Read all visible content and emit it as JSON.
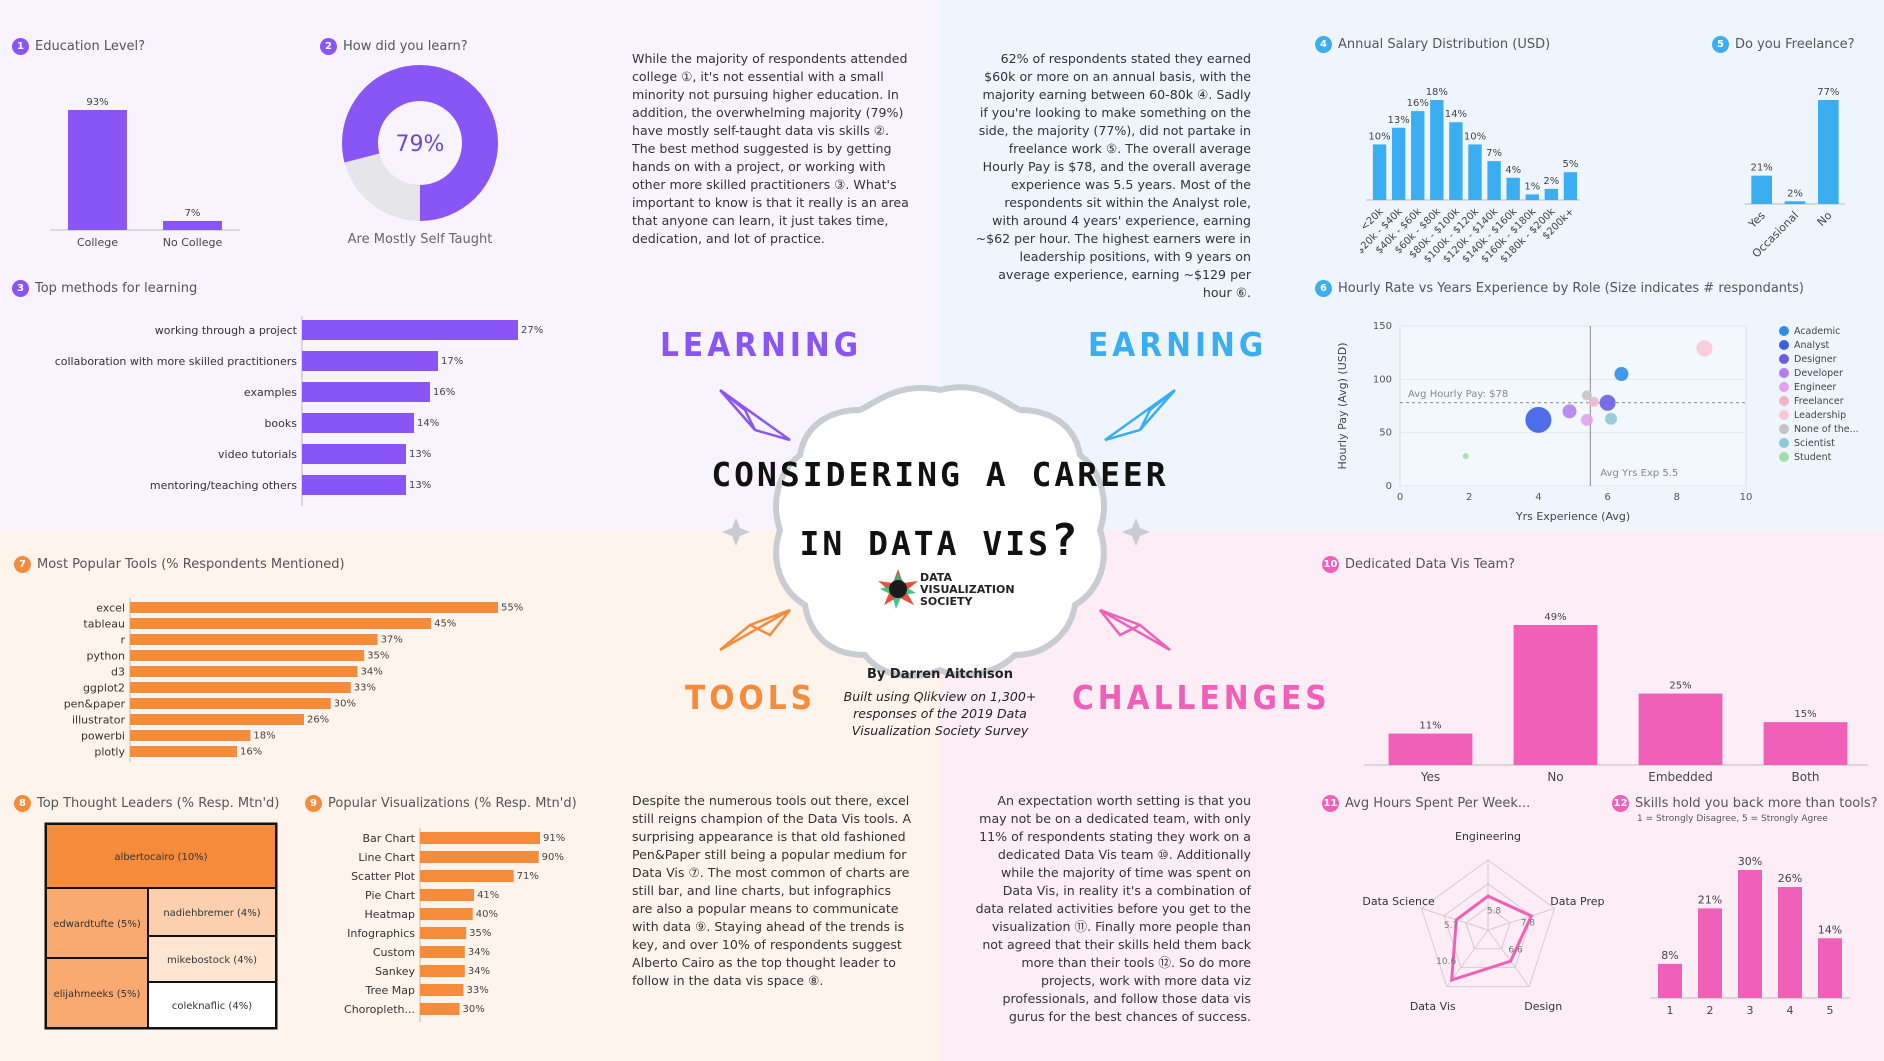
{
  "colors": {
    "purple": "#8a55f5",
    "blue": "#3aaef0",
    "orange": "#f58c3c",
    "pink": "#f05fb8"
  },
  "sections": {
    "learning": "LEARNING",
    "earning": "EARNING",
    "tools": "TOOLS",
    "challenges": "CHALLENGES"
  },
  "center": {
    "title_line1": "CONSIDERING A CAREER",
    "title_line2": "IN DATA VIS",
    "logo_line1": "DATA",
    "logo_line2": "VISUALIZATION",
    "logo_line3": "SOCIETY",
    "byline": "By Darren Aitchison",
    "built1": "Built using Qlikview on 1,300+",
    "built2": "responses of the 2019 Data",
    "built3": "Visualization Society Survey"
  },
  "paragraphs": {
    "learning": "While the majority of respondents attended college ①, it's not essential with a small minority not pursuing higher education. In addition, the overwhelming majority (79%) have mostly self-taught data vis skills ②. The best method suggested is by getting hands on with a project, or working with other more skilled practitioners ③. What's important to know is that it really is an area that anyone can learn, it just takes time, dedication, and lot of practice.",
    "earning": "62% of respondents stated they earned $60k or more on an annual basis, with the majority earning between 60-80k ④. Sadly if you're looking to make something on the side, the majority (77%), did not partake in freelance work ⑤. The overall average Hourly Pay is $78, and the overall average experience was 5.5 years. Most of the respondents sit within the Analyst role, with around 4 years' experience, earning ~$62 per hour. The highest earners were in leadership positions, with 9 years on average experience, earning ~$129 per hour ⑥.",
    "tools": "Despite the numerous tools out there, excel still reigns champion of the Data Vis tools. A surprising appearance is that old fashioned Pen&Paper still being a popular medium for Data Vis ⑦. The most common of charts are still bar, and line charts, but infographics are also a popular means to communicate with data ⑨. Staying ahead of the trends is key, and over 10% of respondents suggest Alberto Cairo as the top thought leader to follow in the data vis space ⑧.",
    "challenges": "An expectation worth setting is that you may not be on a dedicated team, with only 11% of respondents stating they work on a dedicated Data Vis team ⑩. Additionally while the majority of time was spent on Data Vis, in reality it's a combination of data related activities before you get to the visualization ⑪. Finally more people than not agreed that their skills held them back more than their tools ⑫. So do more projects, work with more data viz professionals, and follow those data vis gurus for the best chances of success."
  },
  "chart_data": [
    {
      "id": "1",
      "type": "bar",
      "title": "Education Level?",
      "categories": [
        "College",
        "No College"
      ],
      "values": [
        93,
        7
      ],
      "labels": [
        "93%",
        "7%"
      ]
    },
    {
      "id": "2",
      "type": "pie",
      "title": "How did you learn?",
      "values": [
        79,
        21
      ],
      "center_label": "79%",
      "caption": "Are Mostly Self Taught"
    },
    {
      "id": "3",
      "type": "bar",
      "orientation": "horizontal",
      "title": "Top methods for learning",
      "categories": [
        "working through a project",
        "collaboration with more skilled practitioners",
        "examples",
        "books",
        "video tutorials",
        "mentoring/teaching others"
      ],
      "values": [
        27,
        17,
        16,
        14,
        13,
        13
      ],
      "labels": [
        "27%",
        "17%",
        "16%",
        "14%",
        "13%",
        "13%"
      ]
    },
    {
      "id": "4",
      "type": "bar",
      "title": "Annual Salary Distribution (USD)",
      "categories": [
        "<20k",
        "$20k - $40k",
        "$40k - $60k",
        "$60k - $80k",
        "$80k - $100k",
        "$100k - $120k",
        "$120k - $140k",
        "$140k - $160k",
        "$160k - $180k",
        "$180k - $200k",
        "$200k+"
      ],
      "values": [
        10,
        13,
        16,
        18,
        14,
        10,
        7,
        4,
        1,
        2,
        5
      ],
      "labels": [
        "10%",
        "13%",
        "16%",
        "18%",
        "14%",
        "10%",
        "7%",
        "4%",
        "1%",
        "2%",
        "5%"
      ]
    },
    {
      "id": "5",
      "type": "bar",
      "title": "Do you Freelance?",
      "categories": [
        "Yes",
        "Occasional",
        "No"
      ],
      "values": [
        21,
        2,
        77
      ],
      "labels": [
        "21%",
        "2%",
        "77%"
      ]
    },
    {
      "id": "6",
      "type": "scatter",
      "title": "Hourly Rate vs Years Experience by Role (Size indicates # respondants)",
      "xlabel": "Yrs Experience (Avg)",
      "ylabel": "Hourly Pay (Avg) (USD)",
      "xlim": [
        0,
        10
      ],
      "ylim": [
        0,
        150
      ],
      "xticks": [
        "0",
        "2",
        "4",
        "6",
        "8",
        "10"
      ],
      "yticks": [
        "0",
        "50",
        "100",
        "150"
      ],
      "ref_y": 78,
      "ref_y_label": "Avg Hourly Pay: $78",
      "ref_x": 5.5,
      "ref_x_label": "Avg Yrs Exp 5.5",
      "points": [
        {
          "name": "Academic",
          "x": 6.4,
          "y": 105,
          "size": 7,
          "color": "#2f8de6"
        },
        {
          "name": "Analyst",
          "x": 4.0,
          "y": 62,
          "size": 13,
          "color": "#3e5ee8"
        },
        {
          "name": "Designer",
          "x": 6.0,
          "y": 78,
          "size": 8,
          "color": "#6a5fe0"
        },
        {
          "name": "Developer",
          "x": 4.9,
          "y": 70,
          "size": 7,
          "color": "#b27ff0"
        },
        {
          "name": "Engineer",
          "x": 5.4,
          "y": 62,
          "size": 6,
          "color": "#e3a2f0"
        },
        {
          "name": "Freelancer",
          "x": 5.6,
          "y": 79,
          "size": 5,
          "color": "#f3b4c8"
        },
        {
          "name": "Leadership",
          "x": 8.8,
          "y": 129,
          "size": 8,
          "color": "#f8c8d8"
        },
        {
          "name": "None of the...",
          "x": 5.4,
          "y": 85,
          "size": 5,
          "color": "#c4c4c4"
        },
        {
          "name": "Scientist",
          "x": 6.1,
          "y": 63,
          "size": 6,
          "color": "#8fc8d8"
        },
        {
          "name": "Student",
          "x": 1.9,
          "y": 28,
          "size": 3,
          "color": "#9fe0a8"
        }
      ]
    },
    {
      "id": "7",
      "type": "bar",
      "orientation": "horizontal",
      "title": "Most Popular Tools (% Respondents Mentioned)",
      "categories": [
        "excel",
        "tableau",
        "r",
        "python",
        "d3",
        "ggplot2",
        "pen&paper",
        "illustrator",
        "powerbi",
        "plotly"
      ],
      "values": [
        55,
        45,
        37,
        35,
        34,
        33,
        30,
        26,
        18,
        16
      ],
      "labels": [
        "55%",
        "45%",
        "37%",
        "35%",
        "34%",
        "33%",
        "30%",
        "26%",
        "18%",
        "16%"
      ]
    },
    {
      "id": "8",
      "type": "heatmap",
      "title": "Top Thought Leaders (% Resp. Mtn'd)",
      "cells": [
        {
          "label": "albertocairo (10%)",
          "value": 10
        },
        {
          "label": "edwardtufte (5%)",
          "value": 5
        },
        {
          "label": "elijahmeeks (5%)",
          "value": 5
        },
        {
          "label": "nadiehbremer (4%)",
          "value": 4
        },
        {
          "label": "mikebostock (4%)",
          "value": 4
        },
        {
          "label": "coleknaflic (4%)",
          "value": 4
        }
      ]
    },
    {
      "id": "9",
      "type": "bar",
      "orientation": "horizontal",
      "title": "Popular Visualizations (% Resp. Mtn'd)",
      "categories": [
        "Bar Chart",
        "Line Chart",
        "Scatter Plot",
        "Pie Chart",
        "Heatmap",
        "Infographics",
        "Custom",
        "Sankey",
        "Tree Map",
        "Choropleth..."
      ],
      "values": [
        91,
        90,
        71,
        41,
        40,
        35,
        34,
        34,
        33,
        30
      ],
      "labels": [
        "91%",
        "90%",
        "71%",
        "41%",
        "40%",
        "35%",
        "34%",
        "34%",
        "33%",
        "30%"
      ]
    },
    {
      "id": "10",
      "type": "bar",
      "title": "Dedicated Data Vis Team?",
      "categories": [
        "Yes",
        "No",
        "Embedded",
        "Both"
      ],
      "values": [
        11,
        49,
        25,
        15
      ],
      "labels": [
        "11%",
        "49%",
        "25%",
        "15%"
      ]
    },
    {
      "id": "11",
      "type": "radar",
      "title": "Avg Hours Spent Per Week...",
      "axes": [
        "Engineering",
        "Data Prep",
        "Design",
        "Data Vis",
        "Data Science"
      ],
      "values": [
        5.8,
        7.8,
        6.6,
        10.6,
        5.7
      ],
      "labels": [
        "5.8",
        "7.8",
        "6.6",
        "10.6",
        "5.7"
      ]
    },
    {
      "id": "12",
      "type": "bar",
      "title": "Skills hold you back more than tools?",
      "subtitle": "1 = Strongly Disagree, 5 = Strongly Agree",
      "categories": [
        "1",
        "2",
        "3",
        "4",
        "5"
      ],
      "values": [
        8,
        21,
        30,
        26,
        14
      ],
      "labels": [
        "8%",
        "21%",
        "30%",
        "26%",
        "14%"
      ]
    }
  ]
}
